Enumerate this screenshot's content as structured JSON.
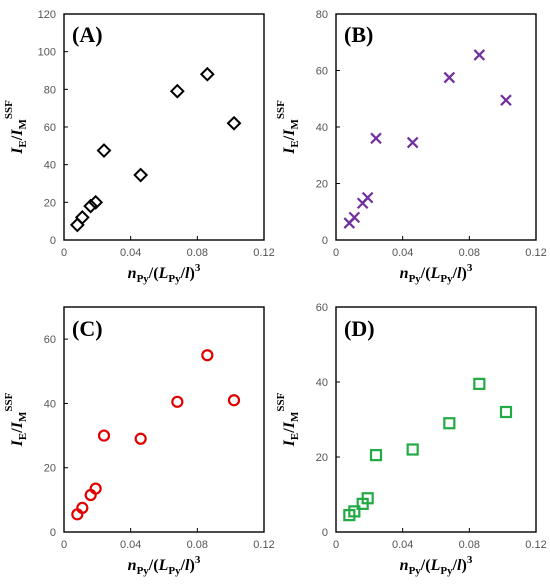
{
  "chart_data": [
    {
      "type": "scatter",
      "panel_label": "(A)",
      "marker": "diamond",
      "color": "#000000",
      "xlim": [
        0,
        0.12
      ],
      "ylim": [
        0,
        120
      ],
      "xticks": [
        "0",
        "0.04",
        "0.08",
        "0.12"
      ],
      "yticks": [
        "0",
        "20",
        "40",
        "60",
        "80",
        "100",
        "120"
      ],
      "points": [
        {
          "x": 0.008,
          "y": 8
        },
        {
          "x": 0.011,
          "y": 12
        },
        {
          "x": 0.016,
          "y": 18
        },
        {
          "x": 0.019,
          "y": 20
        },
        {
          "x": 0.024,
          "y": 47.5
        },
        {
          "x": 0.046,
          "y": 34.5
        },
        {
          "x": 0.068,
          "y": 79
        },
        {
          "x": 0.086,
          "y": 88
        },
        {
          "x": 0.102,
          "y": 62
        }
      ]
    },
    {
      "type": "scatter",
      "panel_label": "(B)",
      "marker": "x",
      "color": "#7030a0",
      "xlim": [
        0,
        0.12
      ],
      "ylim": [
        0,
        80
      ],
      "xticks": [
        "0",
        "0.04",
        "0.08",
        "0.12"
      ],
      "yticks": [
        "0",
        "20",
        "40",
        "60",
        "80"
      ],
      "points": [
        {
          "x": 0.008,
          "y": 6
        },
        {
          "x": 0.011,
          "y": 8
        },
        {
          "x": 0.016,
          "y": 13
        },
        {
          "x": 0.019,
          "y": 15
        },
        {
          "x": 0.024,
          "y": 36
        },
        {
          "x": 0.046,
          "y": 34.5
        },
        {
          "x": 0.068,
          "y": 57.5
        },
        {
          "x": 0.086,
          "y": 65.5
        },
        {
          "x": 0.102,
          "y": 49.5
        }
      ]
    },
    {
      "type": "scatter",
      "panel_label": "(C)",
      "marker": "circle",
      "color": "#e00000",
      "xlim": [
        0,
        0.12
      ],
      "ylim": [
        0,
        70
      ],
      "xticks": [
        "0",
        "0.04",
        "0.08",
        "0.12"
      ],
      "yticks": [
        "0",
        "20",
        "40",
        "60"
      ],
      "points": [
        {
          "x": 0.008,
          "y": 5.5
        },
        {
          "x": 0.011,
          "y": 7.5
        },
        {
          "x": 0.016,
          "y": 11.5
        },
        {
          "x": 0.019,
          "y": 13.5
        },
        {
          "x": 0.024,
          "y": 30
        },
        {
          "x": 0.046,
          "y": 29
        },
        {
          "x": 0.068,
          "y": 40.5
        },
        {
          "x": 0.086,
          "y": 55
        },
        {
          "x": 0.102,
          "y": 41
        }
      ]
    },
    {
      "type": "scatter",
      "panel_label": "(D)",
      "marker": "square",
      "color": "#22aa44",
      "xlim": [
        0,
        0.12
      ],
      "ylim": [
        0,
        60
      ],
      "xticks": [
        "0",
        "0.04",
        "0.08",
        "0.12"
      ],
      "yticks": [
        "0",
        "20",
        "40",
        "60"
      ],
      "points": [
        {
          "x": 0.008,
          "y": 4.5
        },
        {
          "x": 0.011,
          "y": 5.5
        },
        {
          "x": 0.016,
          "y": 7.5
        },
        {
          "x": 0.019,
          "y": 9
        },
        {
          "x": 0.024,
          "y": 20.5
        },
        {
          "x": 0.046,
          "y": 22
        },
        {
          "x": 0.068,
          "y": 29
        },
        {
          "x": 0.086,
          "y": 39.5
        },
        {
          "x": 0.102,
          "y": 32
        }
      ]
    }
  ],
  "axis_text": {
    "y_main": "I",
    "y_sub_e": "E",
    "y_slash": "/",
    "y_main2": "I",
    "y_sub_m": "M",
    "y_sup": "SSF",
    "x_n": "n",
    "x_py_sub": "Py",
    "x_mid": "/(",
    "x_L": "L",
    "x_py_sub2": "Py",
    "x_slash": "/",
    "x_l": "l",
    "x_close": ")",
    "x_sup": "3"
  }
}
